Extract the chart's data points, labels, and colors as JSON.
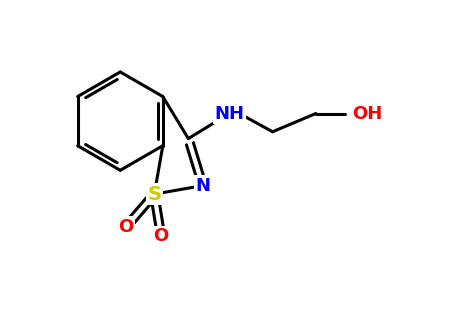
{
  "background_color": "#ffffff",
  "bond_color": "#000000",
  "bond_width": 2.2,
  "atom_colors": {
    "N": "#0000ff",
    "S": "#cccc00",
    "O": "#ff0000",
    "C": "#000000"
  },
  "font_size": 13,
  "fig_width": 4.59,
  "fig_height": 3.16,
  "xlim": [
    0,
    9.5
  ],
  "ylim": [
    0,
    6.88
  ]
}
